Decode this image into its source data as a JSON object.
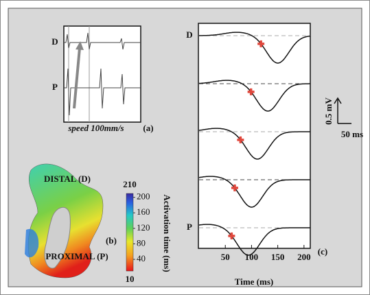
{
  "chart_data": [
    {
      "type": "scatter",
      "panel_label": "(c)",
      "x_label": "Time (ms)",
      "categories": [
        "D",
        null,
        null,
        null,
        "P"
      ],
      "values": [
        118,
        99,
        79,
        68,
        62
      ],
      "color": "#e0473c",
      "xlim": [
        0,
        212
      ],
      "xticks": [
        50,
        100,
        150,
        200
      ]
    },
    {
      "type": "colorbar",
      "label": "Activation time (ms)",
      "ylim": [
        10,
        210
      ],
      "yticks": [
        40,
        80,
        120,
        160,
        200
      ]
    }
  ],
  "panel_a": {
    "labels": [
      "D",
      "P"
    ],
    "caption": "speed 100mm/s",
    "panel_label": "(a)"
  },
  "panel_b": {
    "distal": "DISTAL (D)",
    "proximal": "PROXIMAL (P)",
    "panel_label": "(b)"
  },
  "scale_bar": {
    "vertical": "0.5 mV",
    "horizontal": "50 ms"
  }
}
